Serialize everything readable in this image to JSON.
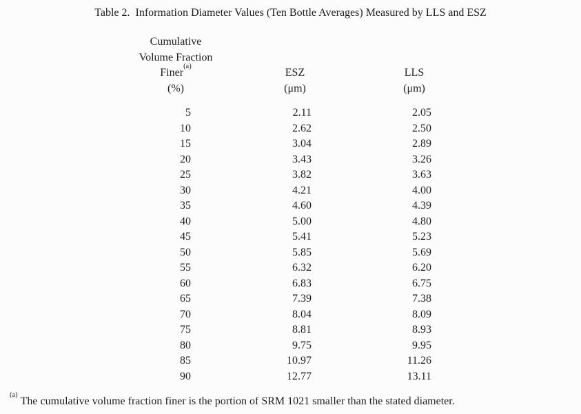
{
  "page": {
    "background_color": "#fcfcfc",
    "text_color": "#1e1e1e"
  },
  "title": "Table 2.  Information Diameter Values (Ten Bottle Averages) Measured by LLS and ESZ",
  "table": {
    "headers": {
      "col1": {
        "line1": "Cumulative",
        "line2": "Volume Fraction",
        "line3": "Finer",
        "line3_sup": "(a)",
        "unit": "(%)"
      },
      "col2": {
        "label": "ESZ",
        "unit": "(μm)"
      },
      "col3": {
        "label": "LLS",
        "unit": "(μm)"
      }
    },
    "rows": [
      {
        "pct": "5",
        "esz": "2.11",
        "lls": "2.05"
      },
      {
        "pct": "10",
        "esz": "2.62",
        "lls": "2.50"
      },
      {
        "pct": "15",
        "esz": "3.04",
        "lls": "2.89"
      },
      {
        "pct": "20",
        "esz": "3.43",
        "lls": "3.26"
      },
      {
        "pct": "25",
        "esz": "3.82",
        "lls": "3.63"
      },
      {
        "pct": "30",
        "esz": "4.21",
        "lls": "4.00"
      },
      {
        "pct": "35",
        "esz": "4.60",
        "lls": "4.39"
      },
      {
        "pct": "40",
        "esz": "5.00",
        "lls": "4.80"
      },
      {
        "pct": "45",
        "esz": "5.41",
        "lls": "5.23"
      },
      {
        "pct": "50",
        "esz": "5.85",
        "lls": "5.69"
      },
      {
        "pct": "55",
        "esz": "6.32",
        "lls": "6.20"
      },
      {
        "pct": "60",
        "esz": "6.83",
        "lls": "6.75"
      },
      {
        "pct": "65",
        "esz": "7.39",
        "lls": "7.38"
      },
      {
        "pct": "70",
        "esz": "8.04",
        "lls": "8.09"
      },
      {
        "pct": "75",
        "esz": "8.81",
        "lls": "8.93"
      },
      {
        "pct": "80",
        "esz": "9.75",
        "lls": "9.95"
      },
      {
        "pct": "85",
        "esz": "10.97",
        "lls": "11.26"
      },
      {
        "pct": "90",
        "esz": "12.77",
        "lls": "13.11"
      }
    ]
  },
  "footnote": {
    "marker": "(a)",
    "text": "The cumulative volume fraction finer is the portion of SRM 1021 smaller than the stated diameter."
  },
  "chart_data": {
    "type": "table",
    "title": "Table 2. Information Diameter Values (Ten Bottle Averages) Measured by LLS and ESZ",
    "xlabel": "Cumulative Volume Fraction Finer (%)",
    "ylabel": "Diameter (μm)",
    "categories": [
      5,
      10,
      15,
      20,
      25,
      30,
      35,
      40,
      45,
      50,
      55,
      60,
      65,
      70,
      75,
      80,
      85,
      90
    ],
    "series": [
      {
        "name": "ESZ (μm)",
        "values": [
          2.11,
          2.62,
          3.04,
          3.43,
          3.82,
          4.21,
          4.6,
          5.0,
          5.41,
          5.85,
          6.32,
          6.83,
          7.39,
          8.04,
          8.81,
          9.75,
          10.97,
          12.77
        ]
      },
      {
        "name": "LLS (μm)",
        "values": [
          2.05,
          2.5,
          2.89,
          3.26,
          3.63,
          4.0,
          4.39,
          4.8,
          5.23,
          5.69,
          6.2,
          6.75,
          7.38,
          8.09,
          8.93,
          9.95,
          11.26,
          13.11
        ]
      }
    ]
  }
}
